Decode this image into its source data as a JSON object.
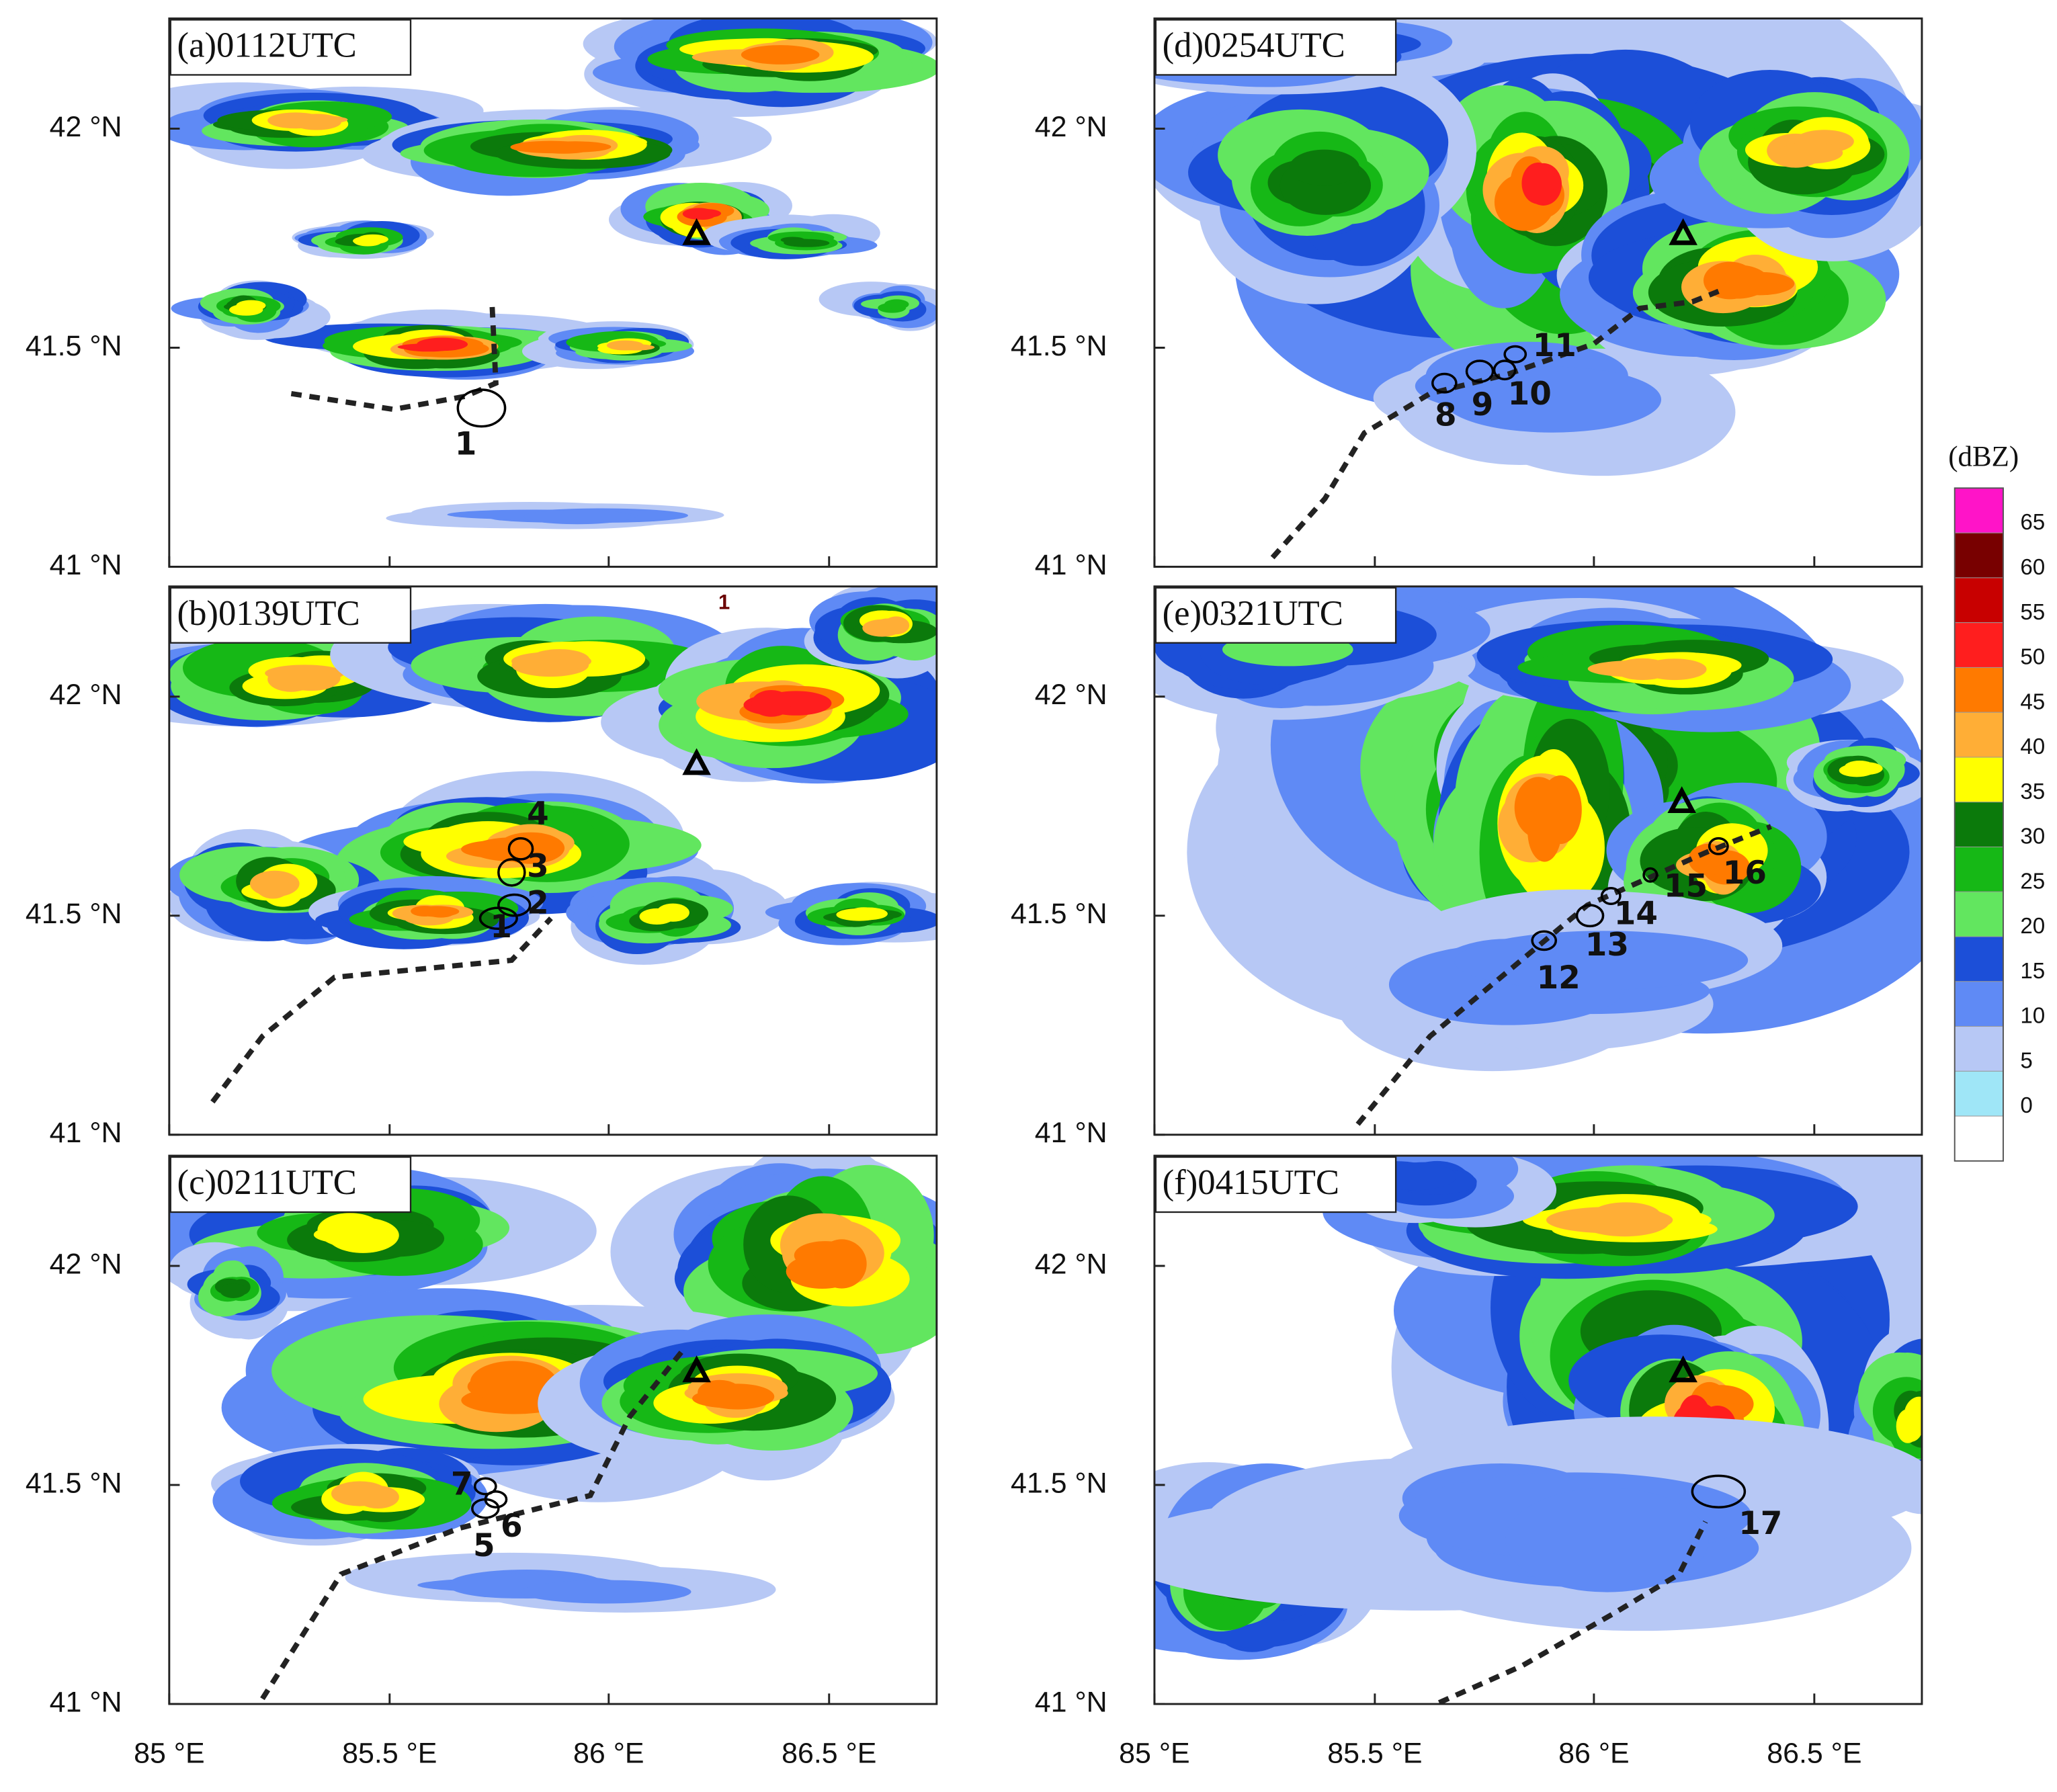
{
  "panels": [
    {
      "label": "(a)0112UTC",
      "cells": [
        "1"
      ]
    },
    {
      "label": "(b)0139UTC",
      "cells": [
        "1",
        "2",
        "3",
        "4"
      ],
      "annotation": "1"
    },
    {
      "label": "(c)0211UTC",
      "cells": [
        "5",
        "6",
        "7"
      ]
    },
    {
      "label": "(d)0254UTC",
      "cells": [
        "8",
        "9",
        "10",
        "11"
      ]
    },
    {
      "label": "(e)0321UTC",
      "cells": [
        "12",
        "13",
        "14",
        "15",
        "16"
      ]
    },
    {
      "label": "(f)0415UTC",
      "cells": [
        "17"
      ]
    }
  ],
  "y_axis_labels": [
    "42 °N",
    "41.5 °N",
    "41 °N"
  ],
  "x_axis_labels": [
    "85 °E",
    "85.5 °E",
    "86 °E",
    "86.5 °E"
  ],
  "colorbar": {
    "unit": "(dBZ)",
    "labels": [
      "65",
      "60",
      "55",
      "50",
      "45",
      "40",
      "35",
      "30",
      "25",
      "20",
      "15",
      "10",
      "5",
      "0"
    ],
    "colors": [
      "#ff14c8",
      "#780000",
      "#c80000",
      "#ff1e1e",
      "#ff7a00",
      "#ffae36",
      "#ffff00",
      "#0b7a0b",
      "#16b816",
      "#62e65f",
      "#1c4fd8",
      "#5f8af5",
      "#b7c8f5",
      "#9fe6f7",
      "#ffffff"
    ]
  }
}
